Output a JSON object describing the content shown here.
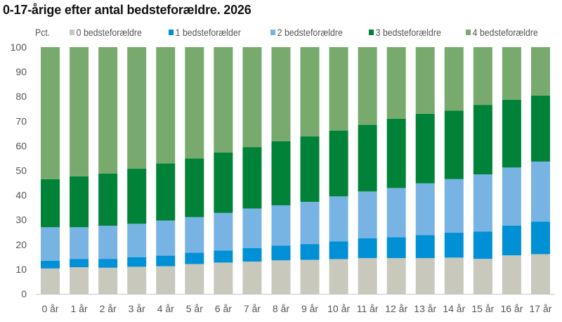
{
  "chart_data": {
    "type": "bar",
    "stacked": true,
    "title": "0-17-årige efter antal bedsteforældre. 2026",
    "ylabel": "Pct.",
    "xlabel": "",
    "ylim": [
      0,
      100
    ],
    "yticks": [
      0,
      10,
      20,
      30,
      40,
      50,
      60,
      70,
      80,
      90,
      100
    ],
    "grid": false,
    "legend_position": "top",
    "categories": [
      "0 år",
      "1 år",
      "2 år",
      "3 år",
      "4 år",
      "5 år",
      "6 år",
      "7 år",
      "8 år",
      "9 år",
      "10 år",
      "11 år",
      "12 år",
      "13 år",
      "14 år",
      "15 år",
      "16 år",
      "17 år"
    ],
    "series": [
      {
        "name": "0 bedsteforældre",
        "color": "#c8c8bc",
        "values": [
          10.3,
          10.8,
          10.6,
          11.0,
          11.2,
          12.1,
          12.7,
          13.1,
          13.6,
          13.8,
          14.1,
          14.5,
          14.5,
          14.5,
          14.7,
          14.2,
          15.6,
          16.1
        ]
      },
      {
        "name": "1 bedsteforælder",
        "color": "#0090d6",
        "values": [
          3.1,
          3.3,
          3.6,
          3.9,
          4.3,
          4.6,
          4.9,
          5.5,
          6.0,
          6.4,
          7.2,
          8.0,
          8.5,
          9.3,
          10.1,
          11.1,
          12.1,
          13.2
        ]
      },
      {
        "name": "2 bedsteforældre",
        "color": "#78b4e3",
        "values": [
          13.6,
          12.9,
          13.4,
          13.5,
          14.2,
          14.4,
          15.2,
          16.0,
          16.3,
          17.1,
          18.2,
          19.0,
          19.9,
          21.0,
          21.7,
          23.1,
          23.5,
          24.3
        ]
      },
      {
        "name": "3 bedsteforældre",
        "color": "#008238",
        "values": [
          19.5,
          20.6,
          21.2,
          22.3,
          23.2,
          23.8,
          24.5,
          24.9,
          26.0,
          26.5,
          26.7,
          27.0,
          28.1,
          28.2,
          27.8,
          28.2,
          27.5,
          26.8
        ]
      },
      {
        "name": "4 bedsteforældre",
        "color": "#78aa6e",
        "values": [
          53.5,
          52.4,
          51.2,
          49.3,
          47.1,
          45.1,
          42.7,
          40.5,
          38.1,
          36.2,
          33.8,
          31.5,
          29.0,
          27.0,
          25.7,
          23.4,
          21.3,
          19.6
        ]
      }
    ]
  }
}
